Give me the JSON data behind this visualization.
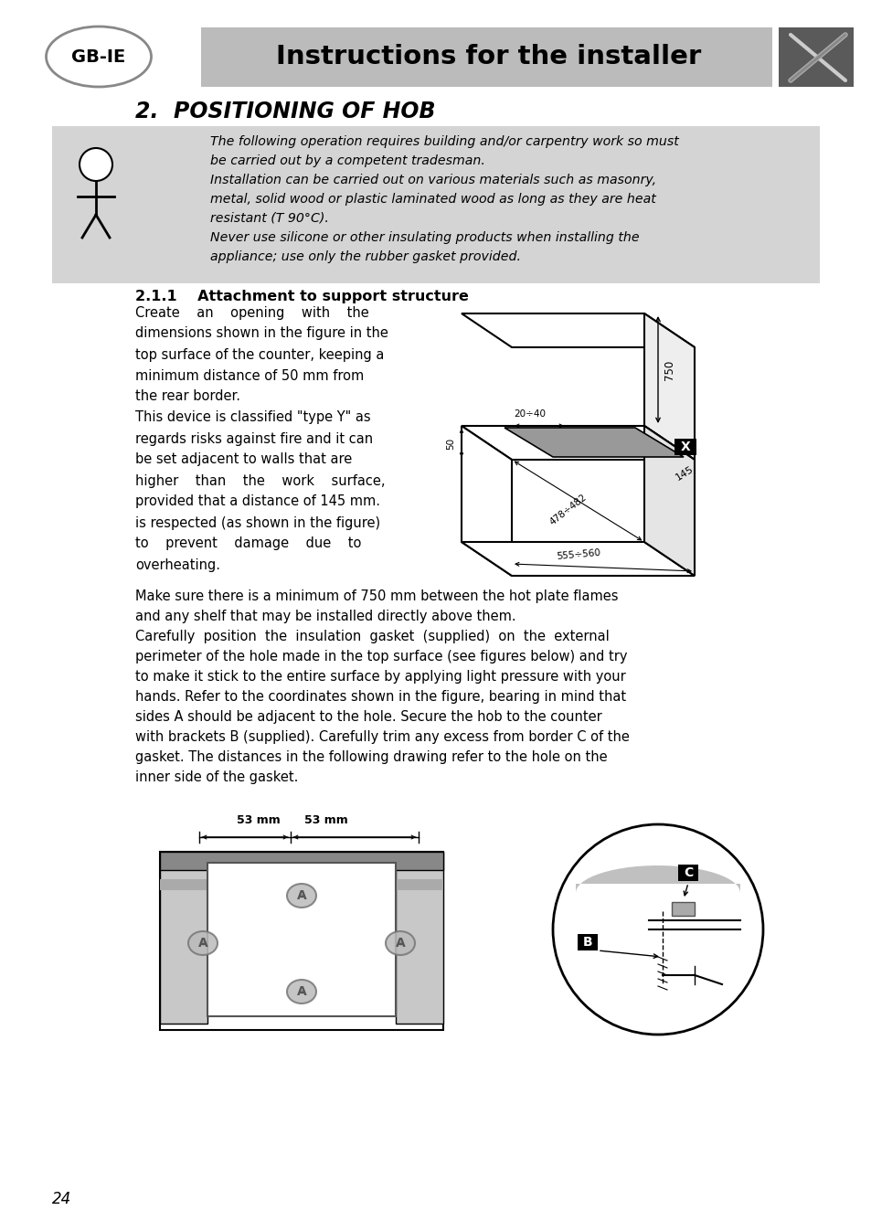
{
  "page_bg": "#ffffff",
  "header_bg": "#bbbbbb",
  "header_text": "Instructions for the installer",
  "section_title": "2.  POSITIONING OF HOB",
  "warning_bg": "#d4d4d4",
  "warning_text_lines": [
    "The following operation requires building and/or carpentry work so must",
    "be carried out by a competent tradesman.",
    "Installation can be carried out on various materials such as masonry,",
    "metal, solid wood or plastic laminated wood as long as they are heat",
    "resistant (T 90°C).",
    "Never use silicone or other insulating products when installing the",
    "appliance; use only the rubber gasket provided."
  ],
  "subsection_title": "2.1.1    Attachment to support structure",
  "col1_lines": [
    "Create    an    opening    with    the",
    "dimensions shown in the figure in the",
    "top surface of the counter, keeping a",
    "minimum distance of 50 mm from",
    "the rear border.",
    "This device is classified \"type Y\" as",
    "regards risks against fire and it can",
    "be set adjacent to walls that are",
    "higher    than    the    work    surface,",
    "provided that a distance of 145 mm.",
    "is respected (as shown in the figure)",
    "to    prevent    damage    due    to",
    "overheating."
  ],
  "full_lines": [
    "Make sure there is a minimum of 750 mm between the hot plate flames",
    "and any shelf that may be installed directly above them.",
    "Carefully  position  the  insulation  gasket  (supplied)  on  the  external",
    "perimeter of the hole made in the top surface (see figures below) and try",
    "to make it stick to the entire surface by applying light pressure with your",
    "hands. Refer to the coordinates shown in the figure, bearing in mind that",
    "sides A should be adjacent to the hole. Secure the hob to the counter",
    "with brackets B (supplied). Carefully trim any excess from border C of the",
    "gasket. The distances in the following drawing refer to the hole on the",
    "inner side of the gasket."
  ],
  "page_number": "24"
}
